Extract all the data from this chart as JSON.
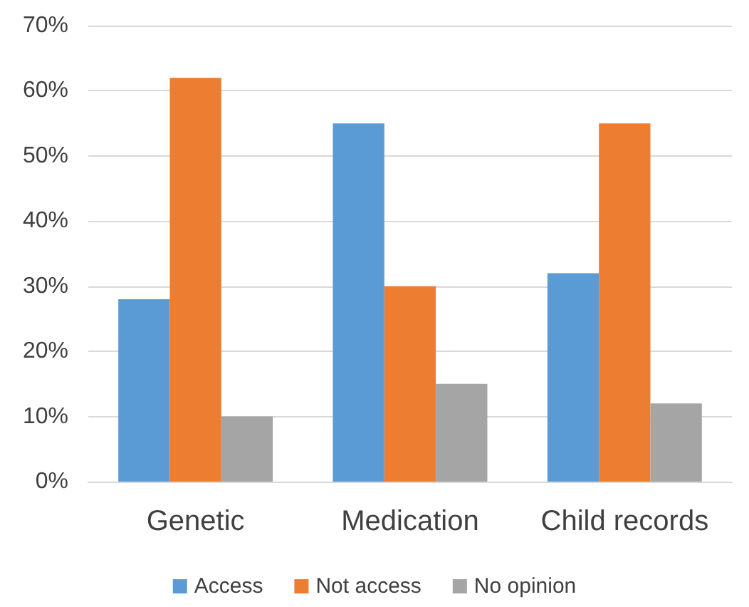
{
  "chart_data": {
    "type": "bar",
    "categories": [
      "Genetic",
      "Medication",
      "Child records"
    ],
    "series": [
      {
        "name": "Access",
        "color": "#5b9bd5",
        "values": [
          28,
          55,
          32
        ]
      },
      {
        "name": "Not access",
        "color": "#ed7d31",
        "values": [
          62,
          30,
          55
        ]
      },
      {
        "name": "No opinion",
        "color": "#a5a5a5",
        "values": [
          10,
          15,
          12
        ]
      }
    ],
    "ylim": [
      0,
      70
    ],
    "yticks": [
      {
        "value": 0,
        "label": "0%"
      },
      {
        "value": 10,
        "label": "10%"
      },
      {
        "value": 20,
        "label": "20%"
      },
      {
        "value": 30,
        "label": "30%"
      },
      {
        "value": 40,
        "label": "40%"
      },
      {
        "value": 50,
        "label": "50%"
      },
      {
        "value": 60,
        "label": "60%"
      },
      {
        "value": 70,
        "label": "70%"
      }
    ],
    "grid": "y",
    "legend": "bottom"
  }
}
